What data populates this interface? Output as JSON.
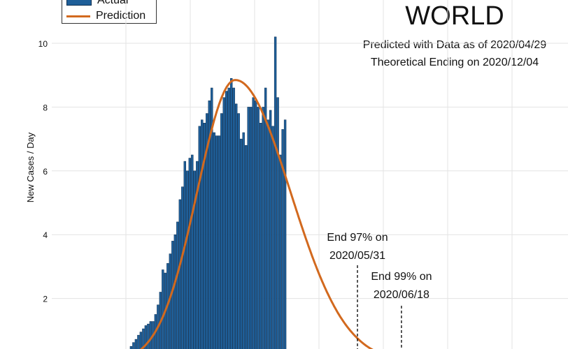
{
  "chart_data": {
    "type": "bar",
    "title": "WORLD",
    "subtitle": [
      "Predicted with Data as of 2020/04/29",
      "Theoretical Ending on 2020/12/04"
    ],
    "ylabel": "New Cases / Day",
    "xlabel": "",
    "ylim": [
      0,
      10.6
    ],
    "yticks": [
      2,
      4,
      6,
      8,
      10
    ],
    "ytick_labels": [
      "2",
      "4",
      "6",
      "8",
      "10"
    ],
    "grid": true,
    "legend": {
      "placement": "top-left",
      "entries": [
        "Actual",
        "Prediction"
      ]
    },
    "series": [
      {
        "name": "Actual",
        "type": "bar",
        "color": "#1f5f99",
        "x_start": 0,
        "values": [
          0.05,
          0.08,
          0.12,
          0.15,
          0.2,
          0.35,
          0.5,
          0.62,
          0.72,
          0.85,
          0.95,
          1.05,
          1.15,
          1.2,
          1.28,
          1.28,
          1.5,
          1.8,
          2.2,
          2.9,
          2.8,
          3.1,
          3.4,
          3.8,
          4.0,
          4.4,
          5.1,
          5.5,
          6.3,
          6.0,
          6.4,
          6.5,
          6.0,
          6.3,
          7.4,
          7.6,
          7.5,
          7.8,
          8.2,
          8.6,
          7.2,
          7.1,
          7.1,
          7.8,
          8.3,
          8.5,
          8.6,
          8.9,
          8.6,
          8.1,
          7.8,
          7.0,
          7.2,
          6.8,
          8.0,
          8.0,
          8.3,
          8.2,
          8.0,
          7.5,
          8.0,
          8.6,
          7.6,
          7.9,
          7.4,
          10.2,
          8.3,
          6.5,
          7.3,
          7.6
        ]
      },
      {
        "name": "Prediction",
        "type": "line",
        "color": "#d2691e",
        "peak_x": 49,
        "peak_y": 8.85,
        "width_left": 15.5,
        "width_right": 22.5,
        "x_range": [
          -38,
          120
        ]
      }
    ],
    "annotations": [
      {
        "text": [
          "End 97% on",
          "2020/05/31"
        ],
        "x": 99
      },
      {
        "text": [
          "End 99% on",
          "2020/06/18"
        ],
        "x": 117
      }
    ]
  }
}
